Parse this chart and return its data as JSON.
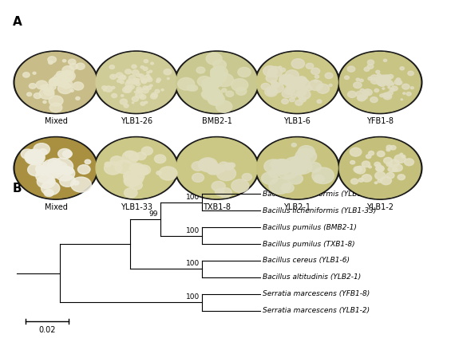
{
  "panel_a_label": "A",
  "panel_b_label": "B",
  "row1_labels": [
    "Mixed",
    "YLB1-26",
    "BMB2-1",
    "YLB1-6",
    "YFB1-8"
  ],
  "row2_labels": [
    "Mixed",
    "YLB1-33",
    "TXB1-8",
    "YLB2-1",
    "YLB1-2"
  ],
  "tree_taxa": [
    "Bacillus licheniformis (YLB1-26)",
    "Bacillus licheniformis (YLB1-33)",
    "Bacillus pumilus (BMB2-1)",
    "Bacillus pumilus (TXB1-8)",
    "Bacillus cereus (YLB1-6)",
    "Bacillus altitudinis (YLB2-1)",
    "Serratia marcescens (YFB1-8)",
    "Serratia marcescens (YLB1-2)"
  ],
  "bootstrap_values": {
    "lich_pair": 100,
    "pum_pair": 100,
    "lich_pum_group": 99,
    "cer_alt_pair": 100,
    "ser_pair": 100
  },
  "scale_bar_value": "0.02",
  "bg_color": "#ffffff",
  "tree_color": "#000000",
  "label_color": "#000000",
  "font_size_labels": 7,
  "font_size_panel": 11,
  "font_size_bootstrap": 6.5,
  "font_size_scale": 7,
  "dish_colors_row1": [
    "#c8b87a",
    "#d4c98a",
    "#ccc88a",
    "#c8c47a",
    "#c4c07a"
  ],
  "dish_colors_row2": [
    "#b89840",
    "#d0c888",
    "#ccc888",
    "#c8c484",
    "#c4c080"
  ],
  "dish_bg": "#1a1a1a"
}
